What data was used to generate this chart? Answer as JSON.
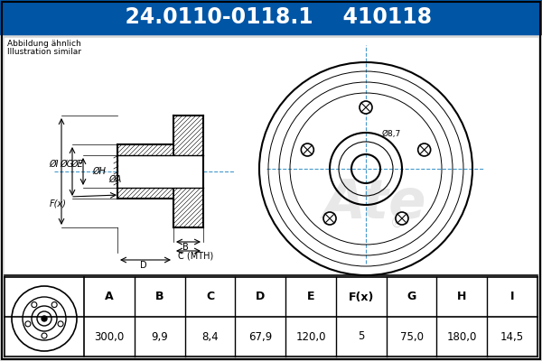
{
  "title_part": "24.0110-0118.1",
  "title_code": "410118",
  "title_bg": "#0055a5",
  "title_text_color": "#ffffff",
  "subtitle_line1": "Abbildung ähnlich",
  "subtitle_line2": "Illustration similar",
  "table_headers": [
    "A",
    "B",
    "C",
    "D",
    "E",
    "F(x)",
    "G",
    "H",
    "I"
  ],
  "table_values": [
    "300,0",
    "9,9",
    "8,4",
    "67,9",
    "120,0",
    "5",
    "75,0",
    "180,0",
    "14,5"
  ],
  "note_phi87": "Ø8,7",
  "bg_color": "#d8d8d8",
  "line_color": "#000000",
  "cross_line_color": "#4499cc"
}
